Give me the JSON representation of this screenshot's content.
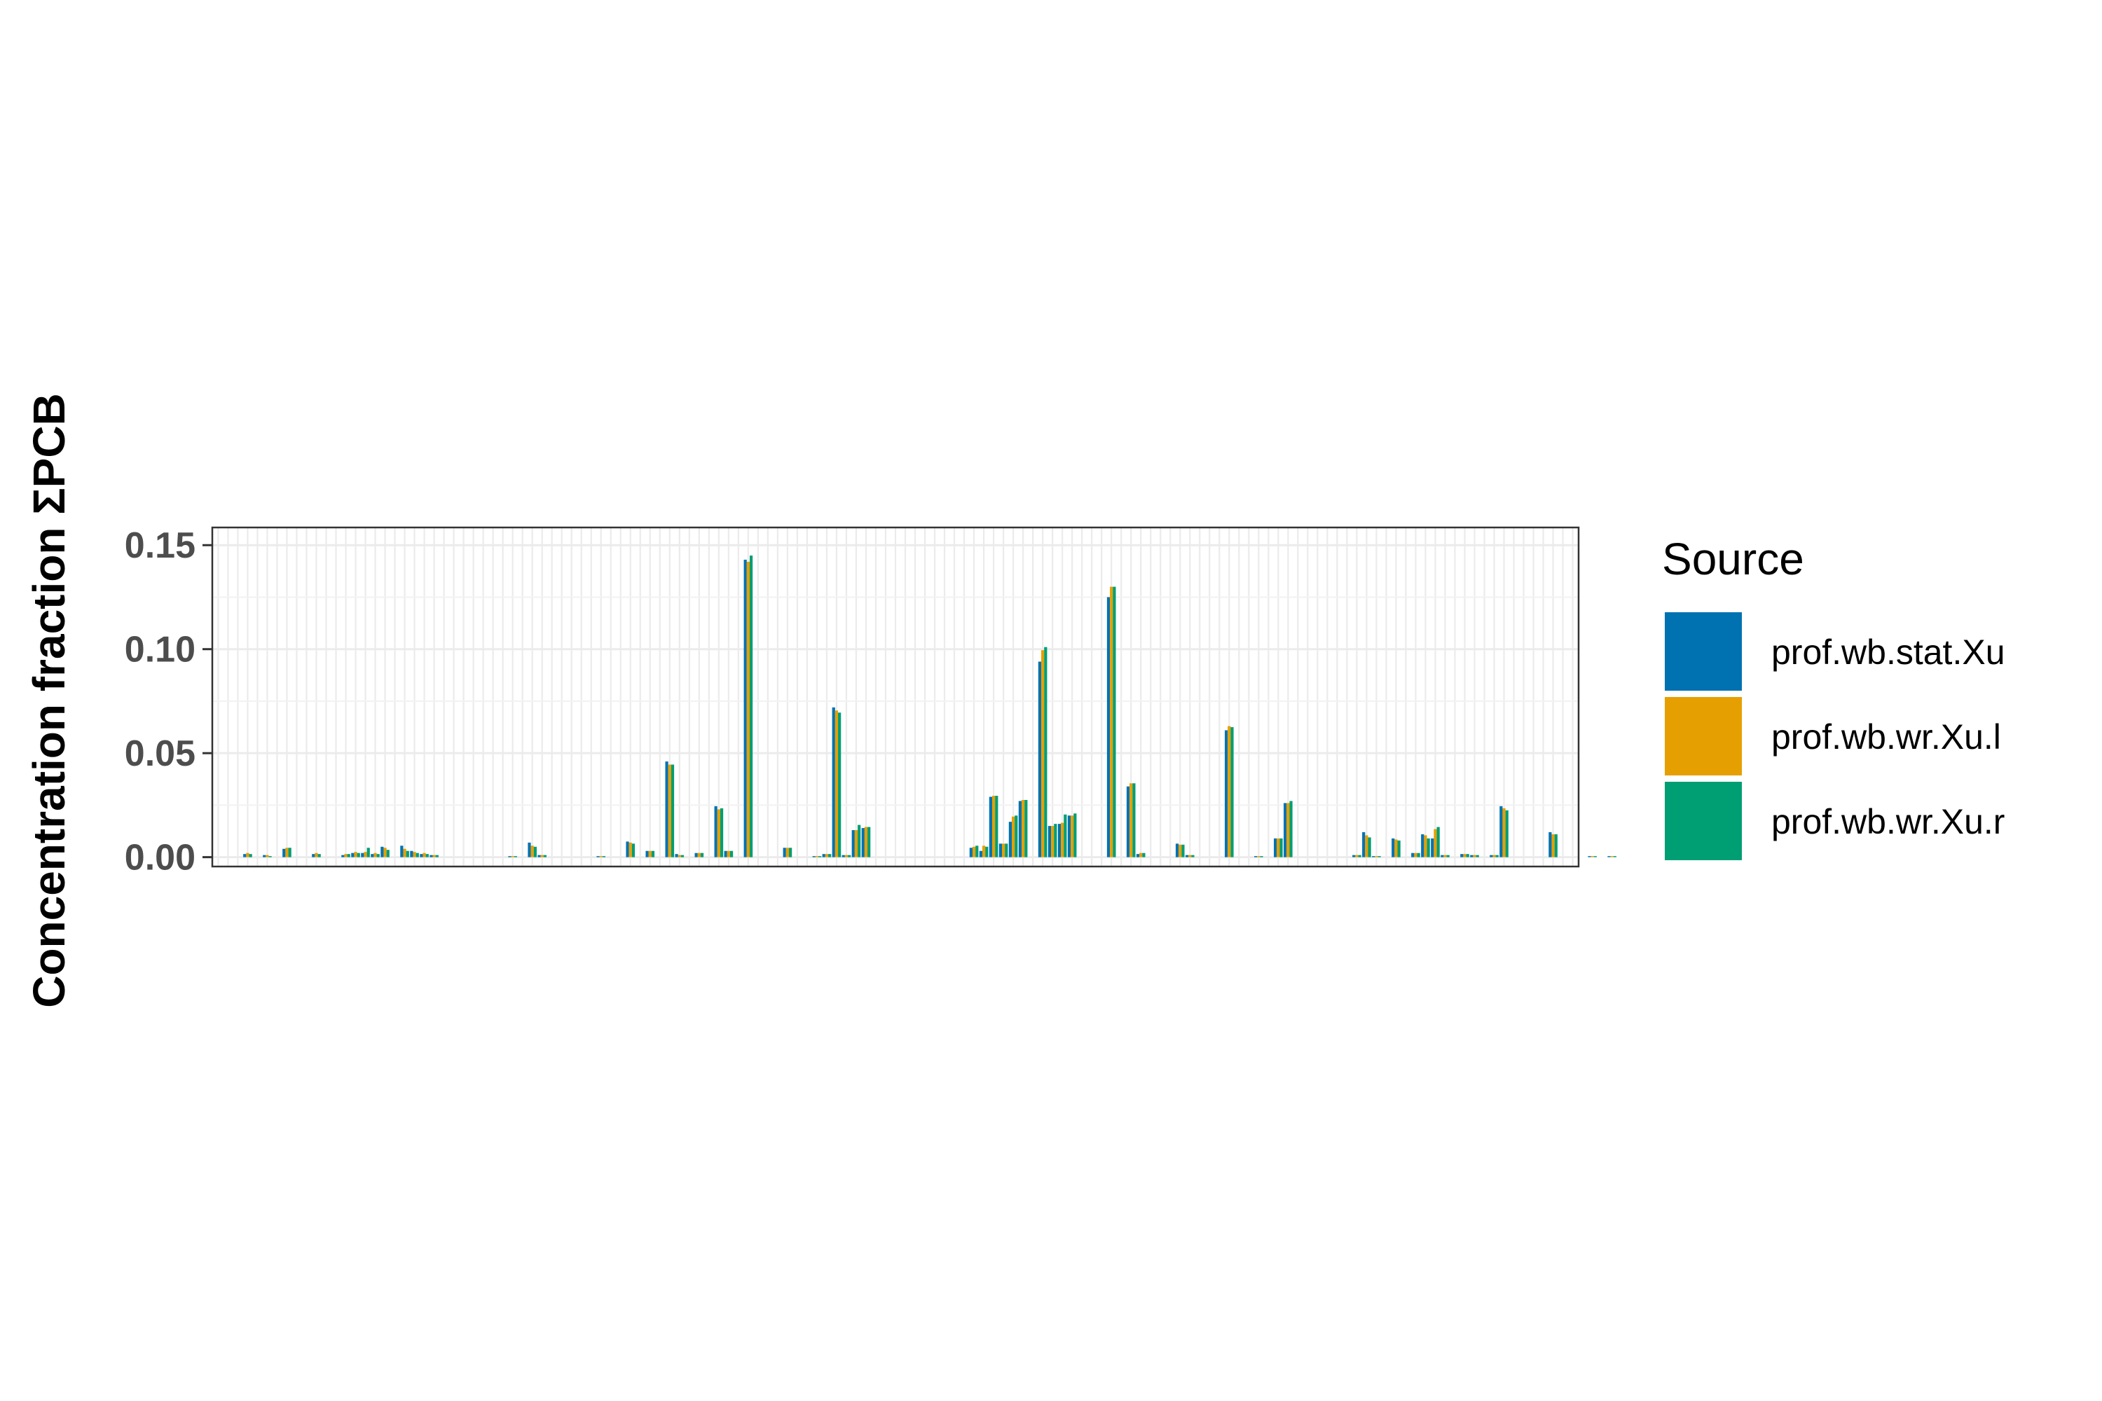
{
  "chart_data": {
    "type": "bar",
    "title": "",
    "xlabel": "",
    "ylabel": "Concentration fraction ΣPCB",
    "ylim": [
      -0.0045,
      0.1585
    ],
    "yticks": [
      0.0,
      0.05,
      0.1,
      0.15
    ],
    "ytick_labels": [
      "0.00",
      "0.05",
      "0.10",
      "0.15"
    ],
    "grid": true,
    "legend_position": "right",
    "legend": {
      "title": "Source",
      "entries": [
        "prof.wb.stat.Xu",
        "prof.wb.wr.Xu.l",
        "prof.wb.wr.Xu.r"
      ]
    },
    "colors": [
      "#0072B2",
      "#E69F00",
      "#009E73"
    ],
    "n_categories": 139,
    "series": [
      {
        "name": "prof.wb.stat.Xu",
        "values": [
          0,
          0,
          0,
          0.0015,
          0,
          0.001,
          0,
          0.004,
          0,
          0,
          0.0015,
          0,
          0,
          0.001,
          0.002,
          0.002,
          0.0015,
          0.005,
          0,
          0.0055,
          0.003,
          0.0015,
          0.001,
          0,
          0,
          0,
          0,
          0,
          0,
          0,
          0.0005,
          0,
          0.007,
          0.001,
          0,
          0,
          0,
          0,
          0,
          0.0005,
          0,
          0,
          0.0075,
          0,
          0.003,
          0,
          0.046,
          0.0015,
          0,
          0.002,
          0,
          0.0245,
          0.003,
          0,
          0.143,
          0,
          0,
          0,
          0.0045,
          0,
          0,
          0.0005,
          0.0015,
          0.072,
          0.001,
          0.013,
          0.014,
          0,
          0,
          0,
          0,
          0,
          0,
          0,
          0,
          0,
          0,
          0.0045,
          0.003,
          0.029,
          0.0065,
          0.017,
          0.027,
          0,
          0.094,
          0.015,
          0.016,
          0.02,
          0,
          0,
          0,
          0.125,
          0,
          0.034,
          0.0015,
          0,
          0,
          0,
          0.0065,
          0.001,
          0,
          0,
          0,
          0.061,
          0,
          0,
          0.0005,
          0,
          0.009,
          0.026,
          0,
          0,
          0,
          0,
          0,
          0,
          0.001,
          0.012,
          0.0005,
          0,
          0.009,
          0,
          0.002,
          0.011,
          0.009,
          0.001,
          0,
          0.0015,
          0.001,
          0,
          0.001,
          0.0245,
          0,
          0,
          0,
          0,
          0.012,
          0,
          0,
          0,
          0.0005,
          0,
          0.0005
        ]
      },
      {
        "name": "prof.wb.wr.Xu.l",
        "values": [
          0,
          0,
          0,
          0.002,
          0,
          0.001,
          0,
          0.0045,
          0,
          0,
          0.002,
          0,
          0,
          0.0015,
          0.0025,
          0.0025,
          0.002,
          0.0045,
          0,
          0.004,
          0.0025,
          0.002,
          0.001,
          0,
          0,
          0,
          0,
          0,
          0,
          0,
          0.0005,
          0,
          0.0055,
          0.001,
          0,
          0,
          0,
          0,
          0,
          0.0005,
          0,
          0,
          0.007,
          0,
          0.003,
          0,
          0.0445,
          0.001,
          0,
          0.002,
          0,
          0.023,
          0.003,
          0,
          0.142,
          0,
          0,
          0,
          0.0045,
          0,
          0,
          0.0005,
          0.0015,
          0.0705,
          0.001,
          0.013,
          0.0145,
          0,
          0,
          0,
          0,
          0,
          0,
          0,
          0,
          0,
          0,
          0.005,
          0.0055,
          0.0295,
          0.0065,
          0.0195,
          0.0275,
          0,
          0.0995,
          0.015,
          0.0165,
          0.02,
          0,
          0,
          0,
          0.13,
          0,
          0.0355,
          0.002,
          0,
          0,
          0,
          0.006,
          0.001,
          0,
          0,
          0,
          0.063,
          0,
          0,
          0.0005,
          0,
          0.009,
          0.026,
          0,
          0,
          0,
          0,
          0,
          0,
          0.001,
          0.0105,
          0.0005,
          0,
          0.0085,
          0,
          0.002,
          0.0105,
          0.0135,
          0.001,
          0,
          0.0015,
          0.001,
          0,
          0.001,
          0.0235,
          0,
          0,
          0,
          0,
          0.011,
          0,
          0,
          0,
          0.0005,
          0,
          0.0005
        ]
      },
      {
        "name": "prof.wb.wr.Xu.r",
        "values": [
          0,
          0,
          0,
          0.0015,
          0,
          0.0005,
          0,
          0.0045,
          0,
          0,
          0.0015,
          0,
          0,
          0.0015,
          0.002,
          0.0045,
          0.0015,
          0.0035,
          0,
          0.003,
          0.002,
          0.0015,
          0.001,
          0,
          0,
          0,
          0,
          0,
          0,
          0,
          0.0005,
          0,
          0.005,
          0.001,
          0,
          0,
          0,
          0,
          0,
          0.0005,
          0,
          0,
          0.0065,
          0,
          0.003,
          0,
          0.0445,
          0.001,
          0,
          0.002,
          0,
          0.0235,
          0.003,
          0,
          0.145,
          0,
          0,
          0,
          0.0045,
          0,
          0,
          0.0005,
          0.0015,
          0.0695,
          0.001,
          0.0155,
          0.0145,
          0,
          0,
          0,
          0,
          0,
          0,
          0,
          0,
          0,
          0,
          0.0055,
          0.005,
          0.0295,
          0.0065,
          0.02,
          0.0275,
          0,
          0.101,
          0.016,
          0.0205,
          0.021,
          0,
          0,
          0,
          0.13,
          0,
          0.0355,
          0.002,
          0,
          0,
          0,
          0.006,
          0.001,
          0,
          0,
          0,
          0.0625,
          0,
          0,
          0.0005,
          0,
          0.009,
          0.027,
          0,
          0,
          0,
          0,
          0,
          0,
          0.001,
          0.0095,
          0.0005,
          0,
          0.008,
          0,
          0.002,
          0.009,
          0.0145,
          0.001,
          0,
          0.0015,
          0.001,
          0,
          0.001,
          0.0225,
          0,
          0,
          0,
          0,
          0.011,
          0,
          0,
          0,
          0.0005,
          0,
          0.0005
        ]
      }
    ]
  }
}
